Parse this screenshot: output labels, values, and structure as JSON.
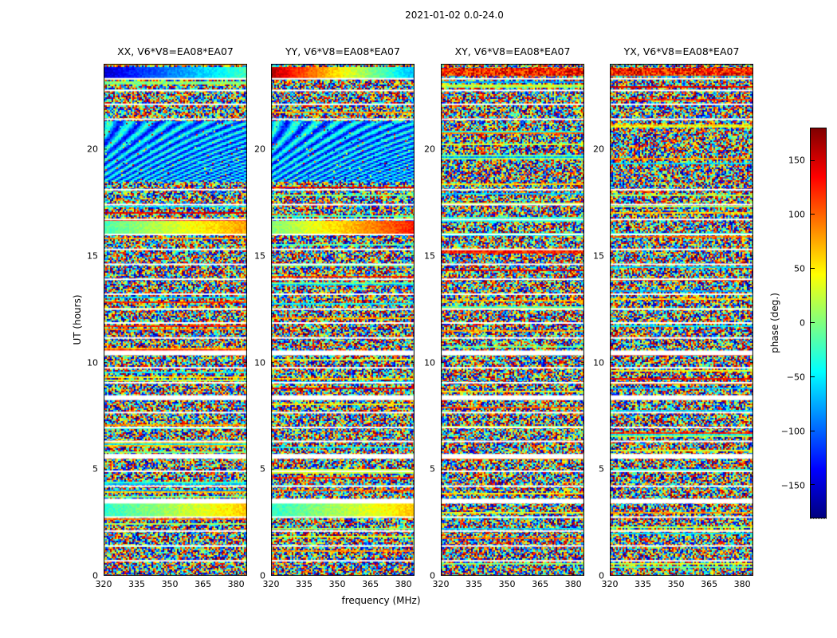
{
  "figure": {
    "title": "2021-01-02 0.0-24.0",
    "xlabel": "frequency (MHz)",
    "ylabel": "UT (hours)",
    "colorbar": {
      "label": "phase (deg.)",
      "ticks": [
        -150,
        -100,
        -50,
        0,
        50,
        100,
        150
      ],
      "clim": [
        -180,
        180
      ],
      "colormap": "jet"
    }
  },
  "chart_data": {
    "type": "heatmap",
    "title": "2021-01-02 0.0-24.0",
    "panels": [
      {
        "title": "XX, V6*V8=EA08*EA07"
      },
      {
        "title": "YY, V6*V8=EA08*EA07"
      },
      {
        "title": "XY, V6*V8=EA08*EA07"
      },
      {
        "title": "YX, V6*V8=EA08*EA07"
      }
    ],
    "x": {
      "label": "frequency (MHz)",
      "lim": [
        320,
        385
      ],
      "ticks": [
        320,
        335,
        350,
        365,
        380
      ]
    },
    "y": {
      "label": "UT (hours)",
      "lim": [
        0,
        24
      ],
      "ticks": [
        0,
        5,
        10,
        15,
        20
      ]
    },
    "value": {
      "label": "phase (deg.)",
      "lim": [
        -180,
        180
      ],
      "colormap": "jet"
    },
    "description": "Visibility phase (deg.) versus frequency and UT for baseline V6*V8=EA08*EA07; four correlation products (XX, YY, XY, YX) of mostly random phase noise separated by white scan gaps; XX and YY show coherent fringe arcs near UT 18.5-21.3 and smooth frequency-gradient bands near UT 3, 16.3 and 23.6",
    "white_gaps_ut": [
      0.7,
      1.4,
      2.1,
      2.75,
      4.2,
      4.9,
      6.3,
      6.95,
      7.65,
      9.05,
      9.75,
      11.15,
      11.85,
      12.5,
      13.2,
      13.9,
      14.6,
      15.3,
      16.0,
      16.7,
      17.4,
      18.1,
      21.4,
      22.1,
      22.75,
      23.3
    ],
    "wide_gaps_ut": [
      3.5,
      5.6,
      8.35,
      10.45
    ],
    "bands": [
      [
        {
          "ut0": 18.5,
          "ut1": 21.3,
          "kind": "fringes"
        },
        {
          "ut0": 16.1,
          "ut1": 16.6,
          "kind": "gradient",
          "t0": 0.45,
          "t1": 0.72
        },
        {
          "ut0": 2.8,
          "ut1": 3.4,
          "kind": "gradient",
          "t0": 0.42,
          "t1": 0.68
        },
        {
          "ut0": 23.4,
          "ut1": 23.85,
          "kind": "gradient",
          "t0": 0.08,
          "t1": 0.45
        }
      ],
      [
        {
          "ut0": 18.5,
          "ut1": 21.3,
          "kind": "fringes"
        },
        {
          "ut0": 16.1,
          "ut1": 16.6,
          "kind": "gradient",
          "t0": 0.5,
          "t1": 0.85
        },
        {
          "ut0": 2.8,
          "ut1": 3.4,
          "kind": "gradient",
          "t0": 0.42,
          "t1": 0.68
        },
        {
          "ut0": 23.4,
          "ut1": 23.85,
          "kind": "gradient",
          "t0": 0.95,
          "t1": 0.3
        }
      ],
      [
        {
          "ut0": 23.45,
          "ut1": 23.8,
          "kind": "noise",
          "t0": 0.72,
          "t1": 0.98
        }
      ],
      [
        {
          "ut0": 23.45,
          "ut1": 23.8,
          "kind": "noise",
          "t0": 0.72,
          "t1": 0.98
        }
      ]
    ]
  }
}
